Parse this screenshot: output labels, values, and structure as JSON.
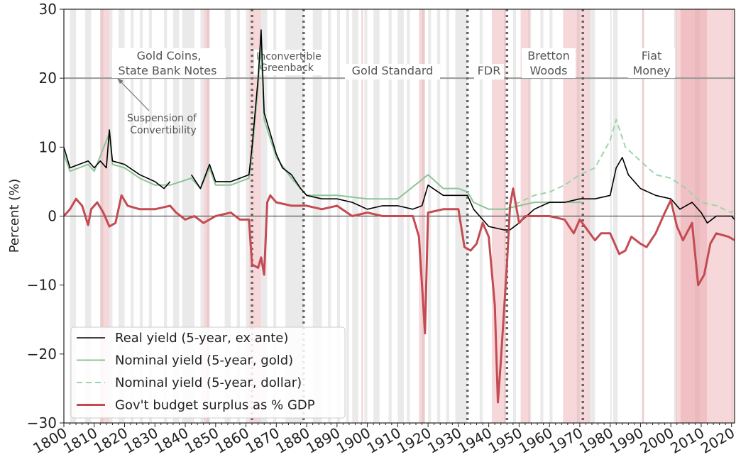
{
  "chart_data": {
    "type": "line",
    "y_label": "Percent (%)",
    "xlim": [
      1800,
      2021
    ],
    "ylim": [
      -30,
      30
    ],
    "xticks": [
      1800,
      1810,
      1820,
      1830,
      1840,
      1850,
      1860,
      1870,
      1880,
      1890,
      1900,
      1910,
      1920,
      1930,
      1940,
      1950,
      1960,
      1970,
      1980,
      1990,
      2000,
      2010,
      2020
    ],
    "yticks": [
      {
        "value": -30,
        "label": "−30"
      },
      {
        "value": -20,
        "label": "−20"
      },
      {
        "value": -10,
        "label": "−10"
      },
      0,
      10,
      20,
      30
    ],
    "hlines": [
      0,
      20
    ],
    "vlines": [
      1862,
      1879,
      1933,
      1946,
      1971
    ],
    "recession_periods": [
      [
        1802,
        1804
      ],
      [
        1807,
        1809
      ],
      [
        1812,
        1813
      ],
      [
        1815,
        1816
      ],
      [
        1818,
        1820
      ],
      [
        1822,
        1823
      ],
      [
        1825,
        1826
      ],
      [
        1828,
        1829
      ],
      [
        1833,
        1834
      ],
      [
        1836,
        1838
      ],
      [
        1839,
        1843
      ],
      [
        1845,
        1846
      ],
      [
        1847,
        1848
      ],
      [
        1853,
        1855
      ],
      [
        1857,
        1858
      ],
      [
        1860,
        1861
      ],
      [
        1865,
        1867
      ],
      [
        1869,
        1870
      ],
      [
        1873,
        1879
      ],
      [
        1882,
        1885
      ],
      [
        1887,
        1888
      ],
      [
        1890,
        1891
      ],
      [
        1893,
        1894
      ],
      [
        1895,
        1897
      ],
      [
        1899,
        1900
      ],
      [
        1902,
        1904
      ],
      [
        1907,
        1908
      ],
      [
        1910,
        1912
      ],
      [
        1913,
        1914
      ],
      [
        1918,
        1919
      ],
      [
        1920,
        1921
      ],
      [
        1923,
        1924
      ],
      [
        1926,
        1927
      ],
      [
        1929,
        1933
      ],
      [
        1937,
        1938
      ],
      [
        1945,
        1945.5
      ],
      [
        1948,
        1949
      ],
      [
        1953,
        1954
      ],
      [
        1957,
        1958
      ],
      [
        1960,
        1961
      ],
      [
        1969,
        1970
      ],
      [
        1973,
        1975
      ],
      [
        1980,
        1980.5
      ],
      [
        1981,
        1982.5
      ],
      [
        1990.5,
        1991
      ],
      [
        2001,
        2001.9
      ],
      [
        2007.9,
        2009.5
      ],
      [
        2020,
        2020.4
      ]
    ],
    "war_periods": [
      [
        1812,
        1815
      ],
      [
        1846,
        1848
      ],
      [
        1861,
        1865
      ],
      [
        1898,
        1898.6
      ],
      [
        1917,
        1918.9
      ],
      [
        1941,
        1945.7
      ],
      [
        1950.5,
        1953.6
      ],
      [
        1964.5,
        1973.2
      ],
      [
        1990.6,
        1991.2
      ],
      [
        2001.6,
        2003
      ],
      [
        2003,
        2021
      ],
      [
        2003.2,
        2011.9
      ]
    ],
    "annotations": {
      "gold_coins": [
        "Gold Coins,",
        "State Bank Notes"
      ],
      "greenback": [
        "Inconvertible",
        "Greenback"
      ],
      "gold_standard": "Gold Standard",
      "fdr": "FDR",
      "bretton": [
        "Bretton",
        "Woods"
      ],
      "fiat": [
        "Fiat",
        "Money"
      ],
      "suspension": [
        "Suspension of",
        "Convertibility"
      ]
    },
    "legend": "lower left",
    "series": [
      {
        "name": "Real yield (5-year, ex ante)",
        "color": "#000000",
        "style": "solid",
        "width": 1.6,
        "x": [
          1800,
          1802,
          1805,
          1808,
          1810,
          1812,
          1814,
          1815,
          1816,
          1820,
          1825,
          1830,
          1833,
          1835,
          1838,
          1842,
          1845,
          1848,
          1850,
          1855,
          1858,
          1861,
          1862,
          1864,
          1865,
          1866,
          1868,
          1870,
          1872,
          1875,
          1878,
          1880,
          1885,
          1890,
          1895,
          1900,
          1905,
          1910,
          1915,
          1918,
          1920,
          1925,
          1930,
          1933,
          1935,
          1940,
          1945,
          1947,
          1950,
          1955,
          1960,
          1965,
          1970,
          1975,
          1980,
          1982,
          1984,
          1986,
          1990,
          1995,
          2000,
          2003,
          2007,
          2010,
          2012,
          2015,
          2020,
          2021
        ],
        "values": [
          10,
          7,
          7.5,
          8,
          7,
          8,
          7,
          12.5,
          8,
          7.5,
          6,
          5,
          4,
          5,
          null,
          6,
          4,
          7.5,
          5,
          5,
          5.5,
          6,
          10,
          20,
          27,
          15,
          12,
          9,
          7,
          6,
          4,
          3,
          2.5,
          2.5,
          2,
          1,
          1.5,
          1.5,
          1,
          1.5,
          4.5,
          3,
          3,
          3,
          1,
          -1.5,
          -2,
          -2,
          -1,
          1,
          2,
          2,
          2.5,
          2.5,
          3,
          7,
          8.5,
          6,
          4,
          3,
          2.5,
          1,
          2,
          0.5,
          -1,
          0,
          0,
          -0.5
        ]
      },
      {
        "name": "Nominal yield (5-year, gold)",
        "color": "#8cc497",
        "style": "solid",
        "width": 2,
        "x": [
          1800,
          1802,
          1805,
          1808,
          1810,
          1815,
          1816,
          1820,
          1825,
          1830,
          1835,
          1842,
          1845,
          1848,
          1850,
          1855,
          1861,
          1862,
          1864,
          1865,
          1866,
          1870,
          1875,
          1880,
          1885,
          1890,
          1900,
          1910,
          1920,
          1925,
          1930,
          1933,
          1935,
          1940,
          1945,
          1950,
          1955,
          1960,
          1965,
          1971
        ],
        "values": [
          9,
          6.5,
          7,
          7.5,
          6.5,
          12,
          7.5,
          7,
          5.5,
          4.5,
          4.5,
          5.5,
          4,
          7,
          4.5,
          4.5,
          5.5,
          9,
          19,
          25,
          14,
          8.5,
          5.5,
          3,
          3,
          3,
          2.5,
          2.5,
          6,
          4,
          4,
          3.5,
          2,
          1,
          1,
          1.5,
          2,
          2,
          2,
          2
        ]
      },
      {
        "name": "Nominal yield (5-year, dollar)",
        "color": "#9fd3a9",
        "style": "dashed",
        "width": 2,
        "x": [
          1946,
          1950,
          1955,
          1960,
          1965,
          1970,
          1975,
          1980,
          1982,
          1985,
          1990,
          1995,
          2000,
          2005,
          2010,
          2015,
          2020,
          2021
        ],
        "values": [
          1,
          2,
          3,
          3.5,
          4.5,
          6,
          7,
          11,
          14,
          10,
          8,
          6,
          5.5,
          4,
          2,
          1.5,
          0.5,
          1
        ]
      },
      {
        "name": "Gov't budget surplus as % GDP",
        "color": "#c44b52",
        "style": "solid",
        "width": 3,
        "x": [
          1800,
          1802,
          1804,
          1806,
          1808,
          1809,
          1811,
          1813,
          1815,
          1817,
          1819,
          1821,
          1825,
          1830,
          1835,
          1837,
          1840,
          1843,
          1846,
          1850,
          1855,
          1858,
          1861,
          1862,
          1864,
          1865,
          1866,
          1867,
          1868,
          1870,
          1875,
          1880,
          1885,
          1890,
          1895,
          1900,
          1905,
          1910,
          1915,
          1917,
          1918,
          1919,
          1920,
          1925,
          1930,
          1932,
          1934,
          1936,
          1938,
          1940,
          1942,
          1943,
          1944,
          1946,
          1947,
          1948,
          1950,
          1952,
          1955,
          1960,
          1965,
          1968,
          1970,
          1975,
          1977,
          1980,
          1983,
          1985,
          1987,
          1990,
          1992,
          1995,
          1998,
          2000,
          2002,
          2004,
          2007,
          2009,
          2011,
          2013,
          2015,
          2019,
          2021
        ],
        "values": [
          0,
          1,
          2.5,
          1.5,
          -1.3,
          1,
          2,
          0.5,
          -1.5,
          -1,
          3,
          1.5,
          1,
          1,
          1.5,
          0.5,
          -0.5,
          0,
          -1,
          0,
          0.5,
          -0.5,
          -0.5,
          -7,
          -7.5,
          -6,
          -8.5,
          2,
          3,
          2,
          1.5,
          1.5,
          1,
          1.5,
          0,
          0.5,
          0,
          0,
          0,
          -3,
          -10,
          -17,
          0.5,
          1,
          1,
          -4.5,
          -5,
          -4,
          -1,
          -3,
          -13,
          -27,
          -21,
          -7,
          1.5,
          4,
          -1,
          0,
          0,
          0,
          -0.5,
          -2.5,
          -0.5,
          -3.5,
          -2.5,
          -2.5,
          -5.5,
          -5,
          -3,
          -4,
          -4.5,
          -2.5,
          0.5,
          2.3,
          -1.5,
          -3.5,
          -1,
          -10,
          -8.5,
          -4,
          -2.5,
          -3,
          -3.5
        ]
      }
    ]
  }
}
